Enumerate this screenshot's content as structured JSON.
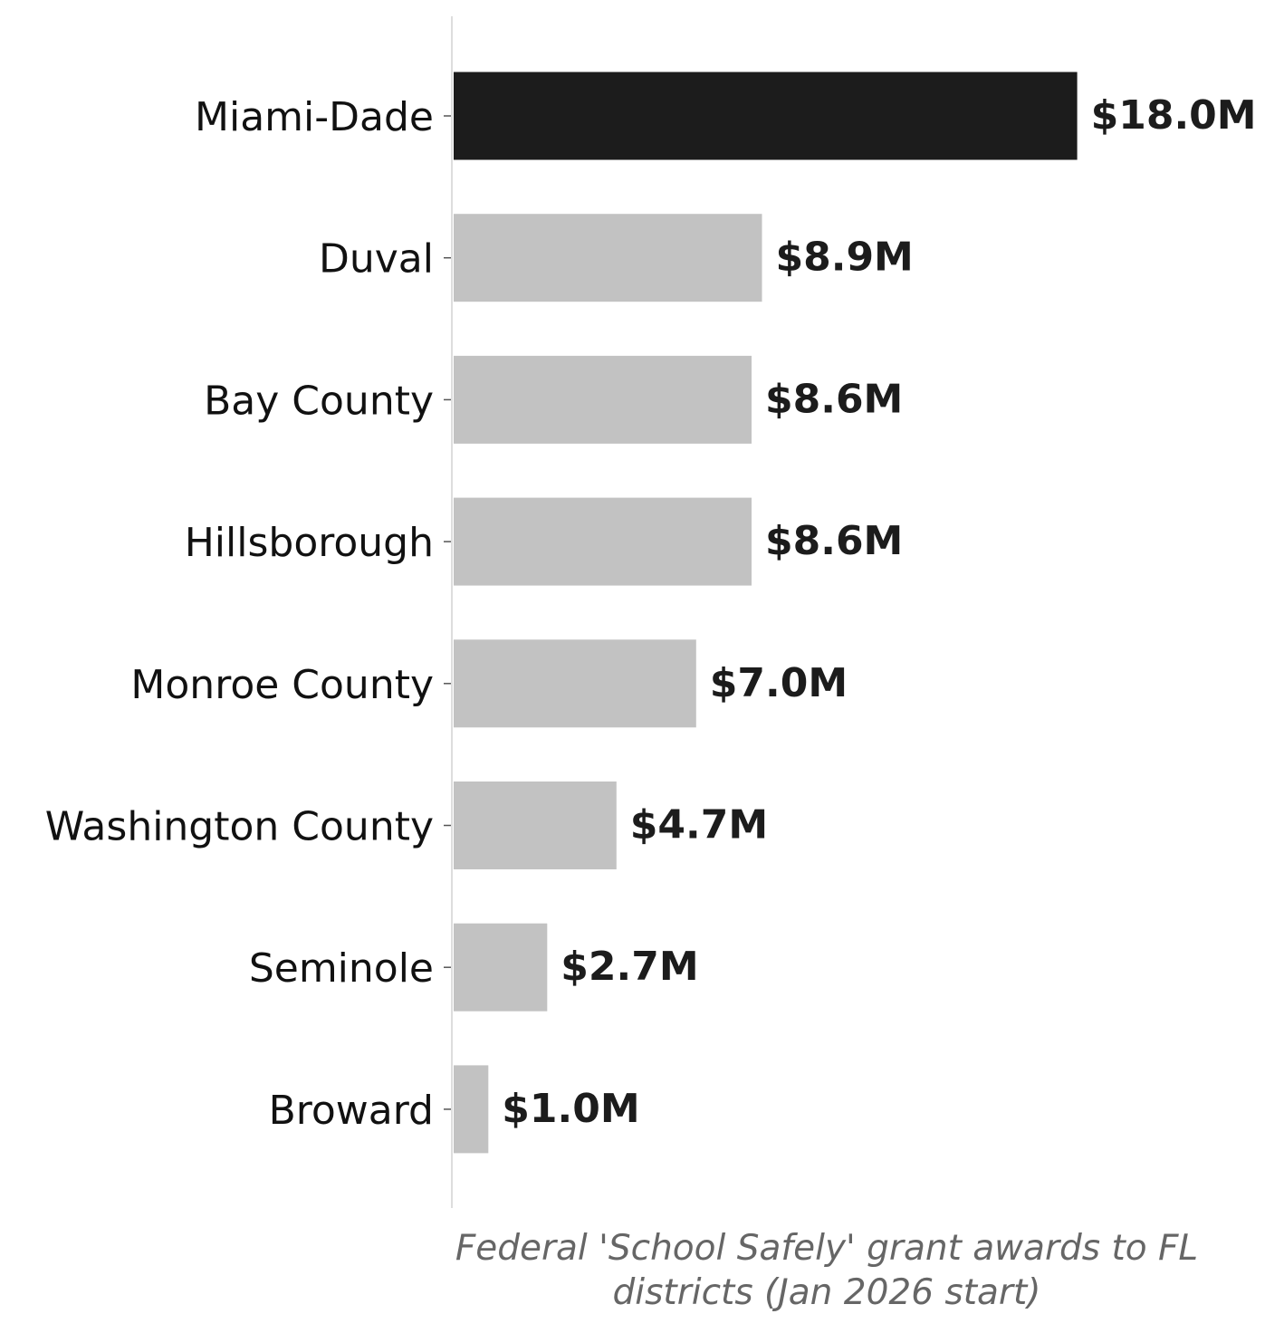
{
  "chart_data": {
    "type": "bar",
    "orientation": "horizontal",
    "categories": [
      "Miami-Dade",
      "Duval",
      "Bay County",
      "Hillsborough",
      "Monroe County",
      "Washington County",
      "Seminole",
      "Broward"
    ],
    "values": [
      18.0,
      8.9,
      8.6,
      8.6,
      7.0,
      4.7,
      2.7,
      1.0
    ],
    "value_labels": [
      "$18.0M",
      "$8.9M",
      "$8.6M",
      "$8.6M",
      "$7.0M",
      "$4.7M",
      "$2.7M",
      "$1.0M"
    ],
    "unit": "USD millions",
    "xlabel_lines": [
      "Federal 'School Safely' grant awards to FL",
      "districts (Jan 2026 start)"
    ],
    "ylabel": "",
    "xlim": [
      0,
      18.9
    ],
    "grid": false,
    "legend": "none",
    "colors": {
      "highlight": "#1c1c1c",
      "default": "#c2c2c2",
      "axis": "#dddddd",
      "tick": "#555555"
    }
  }
}
